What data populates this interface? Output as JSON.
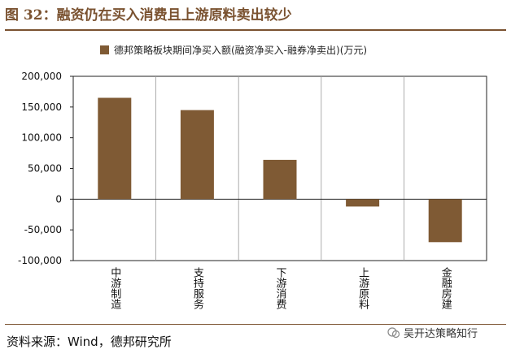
{
  "figure": {
    "title": "图 32：融资仍在买入消费且上游原料卖出较少",
    "source": "资料来源：Wind，德邦研究所",
    "watermark": "吴开达策略知行"
  },
  "colors": {
    "accent": "#7a5230",
    "bar": "#7f5a34"
  },
  "chart_data": {
    "type": "bar",
    "title": "",
    "categories": [
      "中游制造",
      "支持服务",
      "下游消费",
      "上游原料",
      "金融房建"
    ],
    "series": [
      {
        "name": "德邦策略板块期间净买入额(融资净买入-融券净卖出)(万元)",
        "values": [
          165000,
          145000,
          64000,
          -12000,
          -70000
        ]
      }
    ],
    "ylim": [
      -100000,
      200000
    ],
    "yticks": [
      -100000,
      -50000,
      0,
      50000,
      100000,
      150000,
      200000
    ],
    "ytick_labels": [
      "-100,000",
      "-50,000",
      "0",
      "50,000",
      "100,000",
      "150,000",
      "200,000"
    ],
    "xlabel": "",
    "ylabel": "",
    "grid": "vertical-separators",
    "legend_position": "top"
  }
}
